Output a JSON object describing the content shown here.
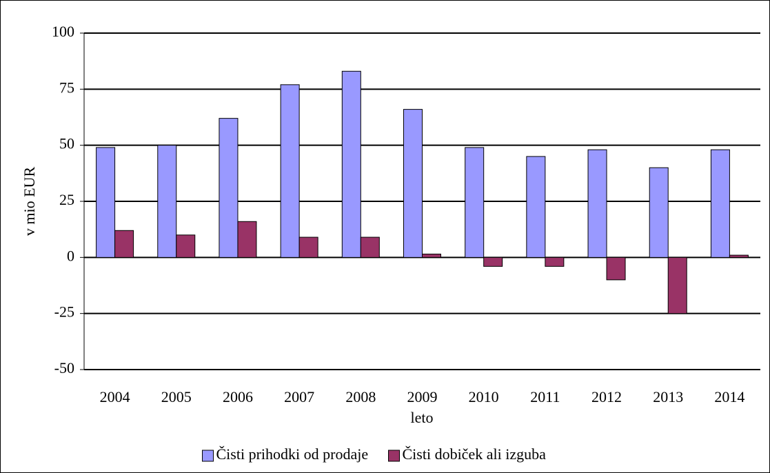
{
  "chart_data": {
    "type": "bar",
    "y_label": "v mio EUR",
    "x_label": "leto",
    "categories": [
      "2004",
      "2005",
      "2006",
      "2007",
      "2008",
      "2009",
      "2010",
      "2011",
      "2012",
      "2013",
      "2014"
    ],
    "series": [
      {
        "name": "Čisti prihodki od prodaje",
        "color": "#9999ff",
        "values": [
          49,
          50,
          62,
          77,
          83,
          66,
          49,
          45,
          48,
          40,
          48
        ]
      },
      {
        "name": "Čisti dobiček ali izguba",
        "color": "#993366",
        "values": [
          12,
          10,
          16,
          9,
          9,
          1.5,
          -4,
          -4,
          -10,
          -25,
          1
        ]
      }
    ],
    "ylim": [
      -50,
      100
    ],
    "yticks": [
      -50,
      -25,
      0,
      25,
      50,
      75,
      100
    ],
    "grid": true,
    "legend": "bottom"
  }
}
